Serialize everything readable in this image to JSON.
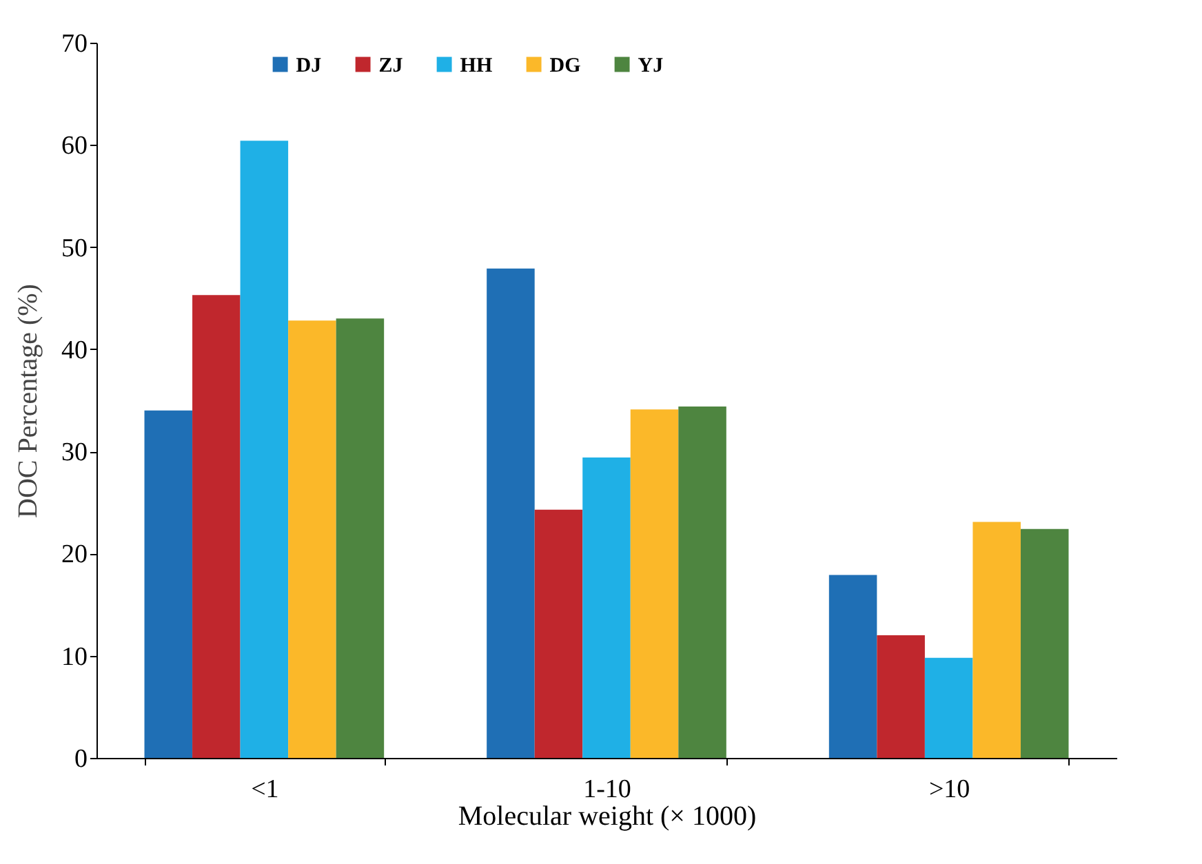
{
  "chart_data": {
    "type": "bar",
    "xlabel": "Molecular weight (× 1000)",
    "ylabel": "DOC Percentage (%)",
    "categories": [
      "<1",
      "1-10",
      ">10"
    ],
    "series": [
      {
        "name": "DJ",
        "color": "#1f6fb5",
        "values": [
          34.0,
          47.9,
          17.9
        ]
      },
      {
        "name": "ZJ",
        "color": "#c0272d",
        "values": [
          45.3,
          24.3,
          12.0
        ]
      },
      {
        "name": "HH",
        "color": "#1fb0e6",
        "values": [
          60.4,
          29.4,
          9.8
        ]
      },
      {
        "name": "DG",
        "color": "#fbb829",
        "values": [
          42.8,
          34.1,
          23.1
        ]
      },
      {
        "name": "YJ",
        "color": "#4e8540",
        "values": [
          43.0,
          34.4,
          22.4
        ]
      }
    ],
    "ylim": [
      0,
      70
    ],
    "yticks": [
      0,
      10,
      20,
      30,
      40,
      50,
      60,
      70
    ],
    "grid": false,
    "legend": "top"
  }
}
